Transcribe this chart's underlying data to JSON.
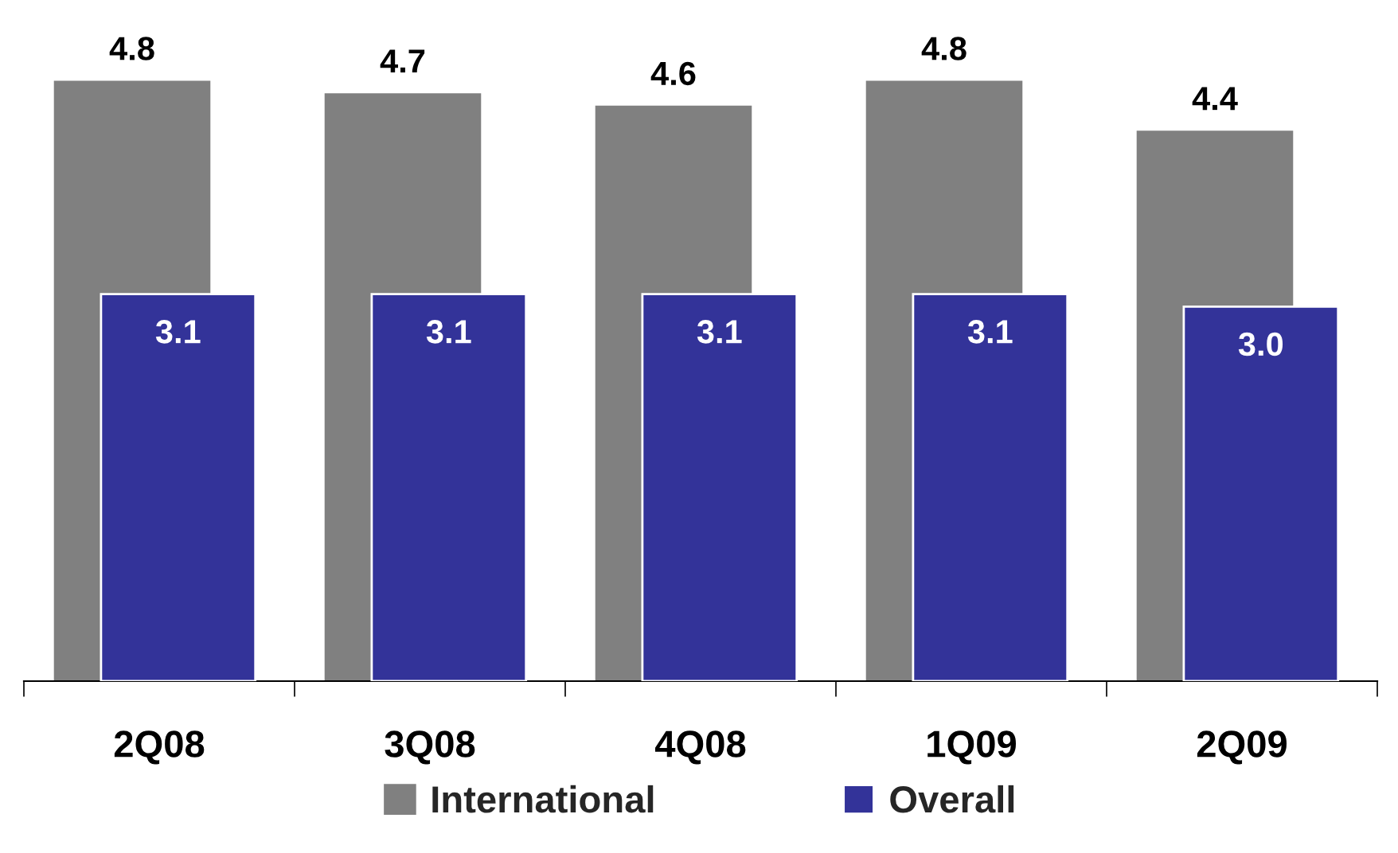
{
  "chart_data": {
    "type": "bar",
    "categories": [
      "2Q08",
      "3Q08",
      "4Q08",
      "1Q09",
      "2Q09"
    ],
    "series": [
      {
        "name": "International",
        "color": "#808080",
        "values": [
          4.8,
          4.7,
          4.6,
          4.8,
          4.4
        ],
        "value_labels": [
          "4.8",
          "4.7",
          "4.6",
          "4.8",
          "4.4"
        ]
      },
      {
        "name": "Overall",
        "color": "#333399",
        "values": [
          3.1,
          3.1,
          3.1,
          3.1,
          3.0
        ],
        "value_labels": [
          "3.1",
          "3.1",
          "3.1",
          "3.1",
          "3.0"
        ]
      }
    ],
    "data_labels": true,
    "legend": "bottom",
    "grid": false,
    "tick_labels": "x"
  }
}
